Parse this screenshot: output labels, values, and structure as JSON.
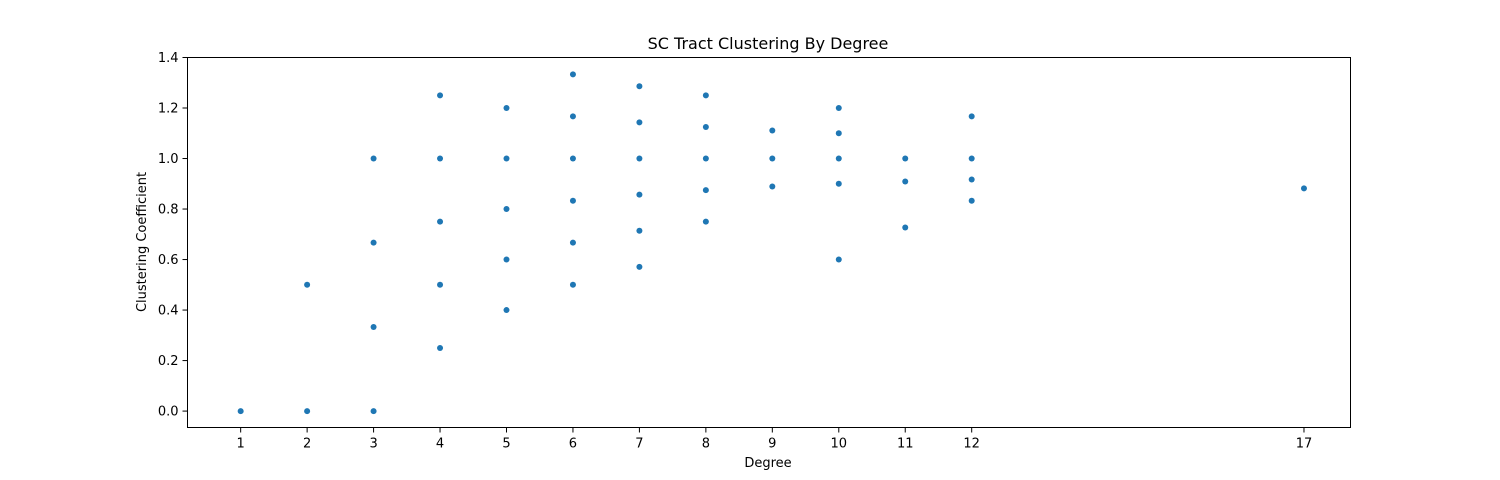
{
  "chart_data": {
    "type": "scatter",
    "title": "SC Tract Clustering By Degree",
    "xlabel": "Degree",
    "ylabel": "Clustering Coefficient",
    "xlim": [
      0.2,
      17.7
    ],
    "ylim": [
      -0.065,
      1.4
    ],
    "xticks": [
      1,
      2,
      3,
      4,
      5,
      6,
      7,
      8,
      9,
      10,
      11,
      12,
      17
    ],
    "yticks": [
      0.0,
      0.2,
      0.4,
      0.6,
      0.8,
      1.0,
      1.2,
      1.4
    ],
    "ytick_labels": [
      "0.0",
      "0.2",
      "0.4",
      "0.6",
      "0.8",
      "1.0",
      "1.2",
      "1.4"
    ],
    "grid": false,
    "marker_color": "#1f77b4",
    "points": [
      [
        1,
        0.0
      ],
      [
        2,
        0.0
      ],
      [
        2,
        0.5
      ],
      [
        3,
        0.0
      ],
      [
        3,
        0.333
      ],
      [
        3,
        0.667
      ],
      [
        3,
        1.0
      ],
      [
        4,
        0.25
      ],
      [
        4,
        0.5
      ],
      [
        4,
        0.75
      ],
      [
        4,
        1.0
      ],
      [
        4,
        1.25
      ],
      [
        5,
        0.4
      ],
      [
        5,
        0.6
      ],
      [
        5,
        0.8
      ],
      [
        5,
        1.0
      ],
      [
        5,
        1.2
      ],
      [
        6,
        0.5
      ],
      [
        6,
        0.667
      ],
      [
        6,
        0.833
      ],
      [
        6,
        1.0
      ],
      [
        6,
        1.167
      ],
      [
        6,
        1.333
      ],
      [
        7,
        0.571
      ],
      [
        7,
        0.714
      ],
      [
        7,
        0.857
      ],
      [
        7,
        1.0
      ],
      [
        7,
        1.143
      ],
      [
        7,
        1.286
      ],
      [
        8,
        0.75
      ],
      [
        8,
        0.875
      ],
      [
        8,
        1.0
      ],
      [
        8,
        1.125
      ],
      [
        8,
        1.25
      ],
      [
        9,
        0.889
      ],
      [
        9,
        1.0
      ],
      [
        9,
        1.111
      ],
      [
        10,
        0.6
      ],
      [
        10,
        0.9
      ],
      [
        10,
        1.0
      ],
      [
        10,
        1.1
      ],
      [
        10,
        1.2
      ],
      [
        11,
        0.727
      ],
      [
        11,
        0.909
      ],
      [
        11,
        1.0
      ],
      [
        12,
        0.833
      ],
      [
        12,
        0.917
      ],
      [
        12,
        1.0
      ],
      [
        12,
        1.167
      ],
      [
        17,
        0.882
      ]
    ]
  }
}
